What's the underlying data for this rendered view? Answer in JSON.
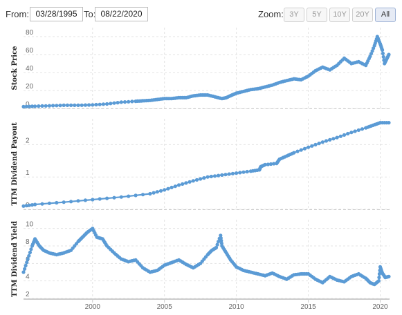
{
  "toolbar": {
    "from_label": "From:",
    "from_value": "03/28/1995",
    "to_label": "To:",
    "to_value": "08/22/2020",
    "zoom_label": "Zoom:",
    "zoom_buttons": [
      "3Y",
      "5Y",
      "10Y",
      "20Y",
      "All"
    ],
    "active_zoom": "All"
  },
  "colors": {
    "series": "#5b9bd5",
    "grid": "#e3e3e3",
    "axis": "#cccccc"
  },
  "chart_data": [
    {
      "type": "line",
      "ylabel": "Stock Price",
      "xlim": [
        1995.2,
        2020.65
      ],
      "ylim": [
        0,
        90
      ],
      "yticks": [
        0,
        20,
        40,
        60,
        80
      ],
      "x": [
        1995.2,
        1996,
        1997,
        1998,
        1999,
        2000,
        2001,
        2002,
        2003,
        2003.5,
        2004,
        2004.5,
        2005,
        2005.5,
        2006,
        2006.5,
        2007,
        2007.5,
        2008,
        2008.5,
        2009,
        2009.3,
        2009.7,
        2010,
        2010.5,
        2011,
        2011.5,
        2012,
        2012.5,
        2013,
        2013.5,
        2014,
        2014.5,
        2015,
        2015.5,
        2016,
        2016.5,
        2017,
        2017.5,
        2018,
        2018.5,
        2019,
        2019.3,
        2019.6,
        2019.8,
        2020,
        2020.15,
        2020.3,
        2020.45,
        2020.6
      ],
      "y": [
        2,
        2.5,
        3,
        3.5,
        3.5,
        4,
        5,
        7,
        8,
        8.5,
        9,
        10,
        11,
        11,
        12,
        12,
        14,
        15,
        15,
        13,
        11,
        12,
        15,
        17,
        19,
        21,
        22,
        24,
        26,
        29,
        31,
        33,
        32,
        36,
        42,
        46,
        43,
        48,
        56,
        50,
        52,
        48,
        58,
        70,
        80,
        72,
        65,
        50,
        55,
        60
      ]
    },
    {
      "type": "line",
      "ylabel": "TTM Dividend Payout",
      "xlim": [
        1995.2,
        2020.65
      ],
      "ylim": [
        0,
        2.8
      ],
      "yticks": [
        0,
        1,
        2
      ],
      "x": [
        1995.2,
        1996,
        1998,
        2000,
        2002,
        2004,
        2005,
        2006,
        2007,
        2008,
        2009,
        2010,
        2011,
        2011.6,
        2011.7,
        2012,
        2012.8,
        2013,
        2013.5,
        2014,
        2015,
        2016,
        2017,
        2018,
        2019,
        2019.5,
        2020,
        2020.6
      ],
      "y": [
        0.1,
        0.15,
        0.22,
        0.3,
        0.38,
        0.48,
        0.6,
        0.75,
        0.88,
        1.0,
        1.06,
        1.12,
        1.18,
        1.22,
        1.32,
        1.38,
        1.42,
        1.55,
        1.65,
        1.75,
        1.92,
        2.08,
        2.22,
        2.38,
        2.52,
        2.6,
        2.68,
        2.68
      ]
    },
    {
      "type": "line",
      "ylabel": "TTM Dividend Yield",
      "xlim": [
        1995.2,
        2020.65
      ],
      "ylim": [
        2,
        11
      ],
      "yticks": [
        2,
        4,
        6,
        8,
        10
      ],
      "x": [
        1995.2,
        1995.5,
        1995.8,
        1996,
        1996.3,
        1996.6,
        1997,
        1997.5,
        1998,
        1998.5,
        1999,
        1999.3,
        1999.6,
        2000,
        2000.3,
        2000.7,
        2001,
        2001.5,
        2002,
        2002.5,
        2003,
        2003.5,
        2004,
        2004.5,
        2005,
        2005.5,
        2006,
        2006.5,
        2007,
        2007.5,
        2008,
        2008.3,
        2008.6,
        2008.9,
        2009,
        2009.3,
        2009.6,
        2010,
        2010.5,
        2011,
        2011.5,
        2012,
        2012.5,
        2013,
        2013.5,
        2014,
        2014.5,
        2015,
        2015.5,
        2016,
        2016.5,
        2017,
        2017.5,
        2018,
        2018.5,
        2019,
        2019.3,
        2019.6,
        2019.9,
        2020,
        2020.15,
        2020.35,
        2020.6
      ],
      "y": [
        5,
        6.5,
        8,
        8.8,
        8,
        7.5,
        7.2,
        7,
        7.2,
        7.5,
        8.5,
        9,
        9.5,
        10,
        9,
        8.8,
        8,
        7.2,
        6.5,
        6.2,
        6.4,
        5.5,
        5,
        5.2,
        5.8,
        6.1,
        6.4,
        5.9,
        5.5,
        6,
        7,
        7.5,
        7.8,
        9.2,
        8,
        7.2,
        6.4,
        5.6,
        5.2,
        5,
        4.8,
        4.6,
        4.9,
        4.5,
        4.2,
        4.7,
        4.8,
        4.8,
        4.2,
        3.8,
        4.5,
        4.1,
        3.9,
        4.5,
        4.8,
        4.3,
        3.8,
        3.6,
        4,
        5.6,
        4.9,
        4.4,
        4.5
      ]
    }
  ],
  "x_axis": {
    "ticks": [
      "2000",
      "2005",
      "2010",
      "2015",
      "2020"
    ],
    "tick_values": [
      2000,
      2005,
      2010,
      2015,
      2020
    ]
  }
}
